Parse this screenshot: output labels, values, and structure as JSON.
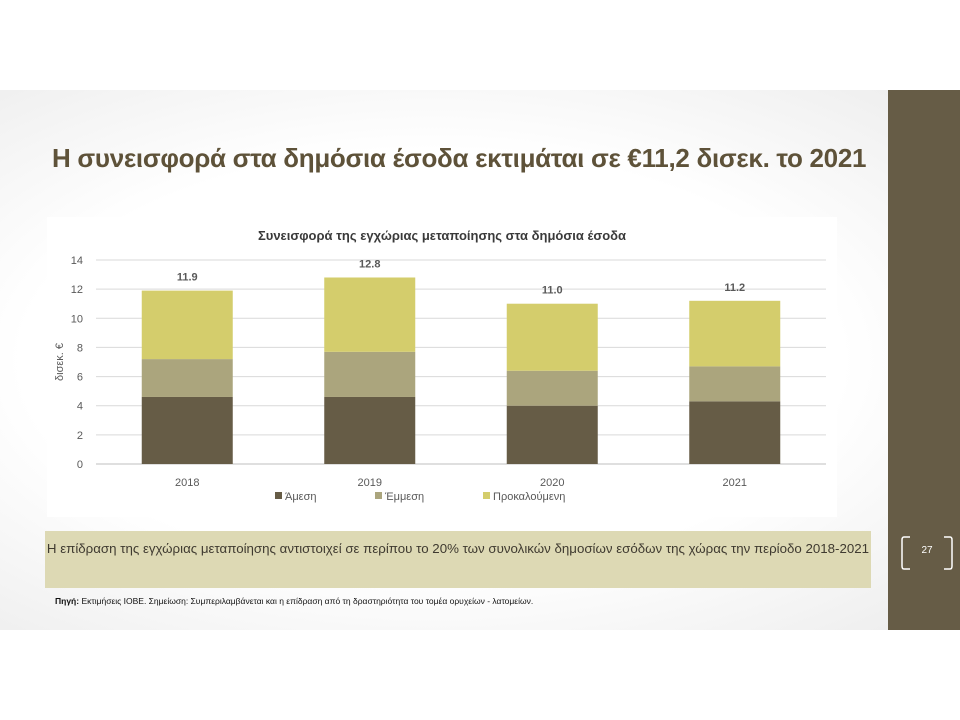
{
  "slide": {
    "title": "Η συνεισφορά στα δημόσια έσοδα εκτιμάται σε €11,2 δισεκ. το 2021",
    "page_number": "27",
    "note": "Η επίδραση της εγχώριας μεταποίησης αντιστοιχεί σε περίπου το 20% των συνολικών δημοσίων εσόδων της χώρας την περίοδο 2018-2021",
    "source_label": "Πηγή:",
    "source_text": " Εκτιμήσεις ΙΟΒΕ. Σημείωση: Συμπεριλαμβάνεται και η επίδραση από τη δραστηριότητα του τομέα ορυχείων - λατομείων.",
    "colors": {
      "sidebar": "#665c46",
      "note_bg": "#ddd9b4",
      "title": "#5e5239"
    }
  },
  "chart_data": {
    "type": "bar",
    "stacked": true,
    "title": "Συνεισφορά της εγχώριας μεταποίησης στα δημόσια έσοδα",
    "ylabel": "δισεκ. €",
    "xlabel": "",
    "ylim": [
      0,
      14
    ],
    "yticks": [
      "0",
      "2",
      "4",
      "6",
      "8",
      "10",
      "12",
      "14"
    ],
    "grid": true,
    "legend_position": "bottom",
    "categories": [
      "2018",
      "2019",
      "2020",
      "2021"
    ],
    "series": [
      {
        "name": "Άμεση",
        "values": [
          4.6,
          4.6,
          4.0,
          4.3
        ],
        "color": "#665c46"
      },
      {
        "name": "Έμμεση",
        "values": [
          2.6,
          3.1,
          2.4,
          2.4
        ],
        "color": "#aba57d"
      },
      {
        "name": "Προκαλούμενη",
        "values": [
          4.7,
          5.1,
          4.6,
          4.5
        ],
        "color": "#d4cd6c"
      }
    ],
    "totals": [
      "11.9",
      "12.8",
      "11.0",
      "11.2"
    ]
  }
}
